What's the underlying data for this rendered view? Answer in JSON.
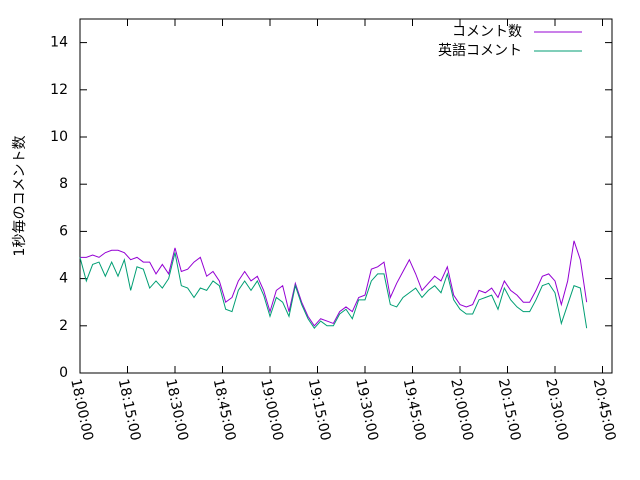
{
  "chart_data": {
    "type": "line",
    "y_label": "1秒毎のコメント数",
    "x": [
      "18:00:00",
      "18:02:00",
      "18:04:00",
      "18:06:00",
      "18:08:00",
      "18:10:00",
      "18:12:00",
      "18:14:00",
      "18:16:00",
      "18:18:00",
      "18:20:00",
      "18:22:00",
      "18:24:00",
      "18:26:00",
      "18:28:00",
      "18:30:00",
      "18:32:00",
      "18:34:00",
      "18:36:00",
      "18:38:00",
      "18:40:00",
      "18:42:00",
      "18:44:00",
      "18:46:00",
      "18:48:00",
      "18:50:00",
      "18:52:00",
      "18:54:00",
      "18:56:00",
      "18:58:00",
      "19:00:00",
      "19:02:00",
      "19:04:00",
      "19:06:00",
      "19:08:00",
      "19:10:00",
      "19:12:00",
      "19:14:00",
      "19:16:00",
      "19:18:00",
      "19:20:00",
      "19:22:00",
      "19:24:00",
      "19:26:00",
      "19:28:00",
      "19:30:00",
      "19:32:00",
      "19:34:00",
      "19:36:00",
      "19:38:00",
      "19:40:00",
      "19:42:00",
      "19:44:00",
      "19:46:00",
      "19:48:00",
      "19:50:00",
      "19:52:00",
      "19:54:00",
      "19:56:00",
      "19:58:00",
      "20:00:00",
      "20:02:00",
      "20:04:00",
      "20:06:00",
      "20:08:00",
      "20:10:00",
      "20:12:00",
      "20:14:00",
      "20:16:00",
      "20:18:00",
      "20:20:00",
      "20:22:00",
      "20:24:00",
      "20:26:00",
      "20:28:00",
      "20:30:00",
      "20:32:00",
      "20:34:00",
      "20:36:00",
      "20:38:00",
      "20:40:00"
    ],
    "series": [
      {
        "name": "コメント数",
        "color": "#9400d3",
        "values": [
          4.9,
          4.9,
          5.0,
          4.9,
          5.1,
          5.2,
          5.2,
          5.1,
          4.8,
          4.9,
          4.7,
          4.7,
          4.2,
          4.6,
          4.2,
          5.3,
          4.3,
          4.4,
          4.7,
          4.9,
          4.1,
          4.3,
          3.9,
          3.0,
          3.2,
          3.9,
          4.3,
          3.9,
          4.1,
          3.5,
          2.6,
          3.5,
          3.7,
          2.6,
          3.8,
          3.0,
          2.4,
          2.0,
          2.3,
          2.2,
          2.1,
          2.6,
          2.8,
          2.6,
          3.2,
          3.3,
          4.4,
          4.5,
          4.7,
          3.2,
          3.8,
          4.3,
          4.8,
          4.2,
          3.5,
          3.8,
          4.1,
          3.9,
          4.5,
          3.3,
          2.9,
          2.8,
          2.9,
          3.5,
          3.4,
          3.6,
          3.2,
          3.9,
          3.5,
          3.3,
          3.0,
          3.0,
          3.5,
          4.1,
          4.2,
          3.9,
          2.9,
          3.9,
          5.6,
          4.8,
          3.0
        ]
      },
      {
        "name": "英語コメント",
        "color": "#009e73",
        "values": [
          4.9,
          3.9,
          4.6,
          4.7,
          4.1,
          4.7,
          4.1,
          4.8,
          3.5,
          4.5,
          4.4,
          3.6,
          3.9,
          3.6,
          4.0,
          5.1,
          3.7,
          3.6,
          3.2,
          3.6,
          3.5,
          3.9,
          3.7,
          2.7,
          2.6,
          3.5,
          3.9,
          3.5,
          3.9,
          3.3,
          2.4,
          3.2,
          3.0,
          2.4,
          3.7,
          2.9,
          2.3,
          1.9,
          2.2,
          2.0,
          2.0,
          2.5,
          2.7,
          2.3,
          3.1,
          3.1,
          3.9,
          4.2,
          4.2,
          2.9,
          2.8,
          3.2,
          3.4,
          3.6,
          3.2,
          3.5,
          3.7,
          3.4,
          4.2,
          3.1,
          2.7,
          2.5,
          2.5,
          3.1,
          3.2,
          3.3,
          2.7,
          3.6,
          3.1,
          2.8,
          2.6,
          2.6,
          3.1,
          3.7,
          3.8,
          3.4,
          2.1,
          2.9,
          3.7,
          3.6,
          1.9
        ]
      }
    ],
    "xlim": [
      "18:00:00",
      "20:48:00"
    ],
    "xticks": [
      "18:00:00",
      "18:15:00",
      "18:30:00",
      "18:45:00",
      "19:00:00",
      "19:15:00",
      "19:30:00",
      "19:45:00",
      "20:00:00",
      "20:15:00",
      "20:30:00",
      "20:45:00"
    ],
    "ylim": [
      0,
      15
    ],
    "yticks": [
      0,
      2,
      4,
      6,
      8,
      10,
      12,
      14
    ],
    "legend": "upper right",
    "grid": false
  }
}
